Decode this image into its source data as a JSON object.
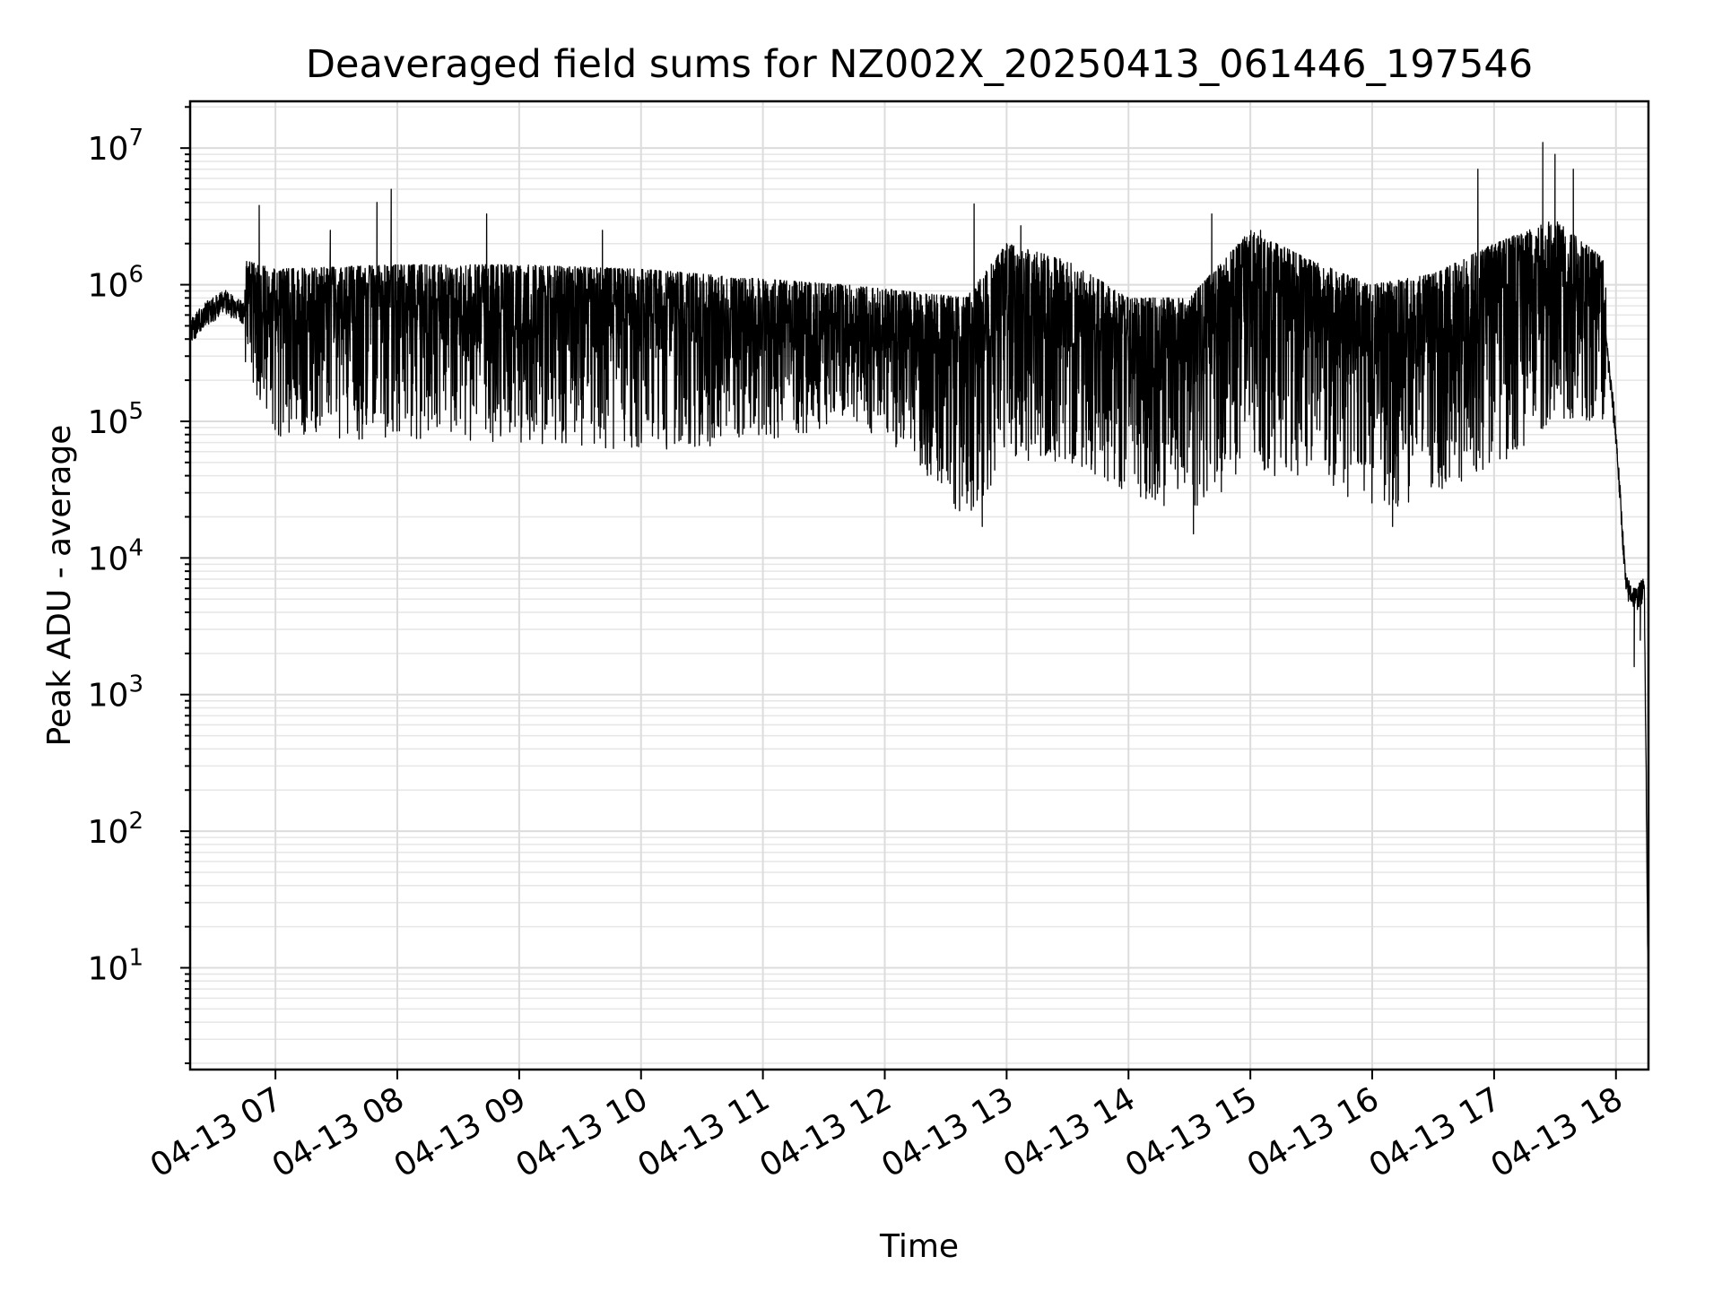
{
  "chart_data": {
    "type": "line",
    "title": "Deaveraged field sums for NZ002X_20250413_061446_197546",
    "xlabel": "Time",
    "ylabel": "Peak ADU - average",
    "x_tick_labels": [
      "04-13 07",
      "04-13 08",
      "04-13 09",
      "04-13 10",
      "04-13 11",
      "04-13 12",
      "04-13 13",
      "04-13 14",
      "04-13 15",
      "04-13 16",
      "04-13 17",
      "04-13 18"
    ],
    "y_tick_labels": [
      {
        "base": "10",
        "exp": "1"
      },
      {
        "base": "10",
        "exp": "2"
      },
      {
        "base": "10",
        "exp": "3"
      },
      {
        "base": "10",
        "exp": "4"
      },
      {
        "base": "10",
        "exp": "5"
      },
      {
        "base": "10",
        "exp": "6"
      },
      {
        "base": "10",
        "exp": "7"
      }
    ],
    "x_range": [
      "2025-04-13 06:18",
      "2025-04-13 18:16"
    ],
    "y_range": [
      1.8,
      22000000
    ],
    "y_scale": "log",
    "grid": true,
    "line_color": "#000000",
    "series": [
      {
        "x": [
          "2025-04-13 06:18",
          "2025-04-13 06:25",
          "2025-04-13 06:35",
          "2025-04-13 06:42",
          "2025-04-13 06:50",
          "2025-04-13 07:00",
          "2025-04-13 07:15",
          "2025-04-13 07:30",
          "2025-04-13 07:45",
          "2025-04-13 08:00",
          "2025-04-13 08:30",
          "2025-04-13 09:00",
          "2025-04-13 09:30",
          "2025-04-13 10:00",
          "2025-04-13 10:30",
          "2025-04-13 11:00",
          "2025-04-13 11:30",
          "2025-04-13 12:00",
          "2025-04-13 12:30",
          "2025-04-13 13:00",
          "2025-04-13 13:30",
          "2025-04-13 14:00",
          "2025-04-13 14:30",
          "2025-04-13 15:00",
          "2025-04-13 15:30",
          "2025-04-13 16:00",
          "2025-04-13 16:30",
          "2025-04-13 17:00",
          "2025-04-13 17:30",
          "2025-04-13 17:55",
          "2025-04-13 18:00",
          "2025-04-13 18:05",
          "2025-04-13 18:10",
          "2025-04-13 18:14",
          "2025-04-13 18:16"
        ],
        "y": [
          450000,
          600000,
          750000,
          650000,
          600000,
          500000,
          500000,
          550000,
          600000,
          550000,
          500000,
          550000,
          500000,
          450000,
          400000,
          380000,
          350000,
          330000,
          200000,
          350000,
          300000,
          200000,
          150000,
          450000,
          350000,
          200000,
          250000,
          380000,
          600000,
          400000,
          80000,
          6000,
          5000,
          6000,
          4
        ]
      }
    ],
    "range_low_envelope": [
      {
        "x": "2025-04-13 06:45",
        "y": 250000
      },
      {
        "x": "2025-04-13 07:00",
        "y": 70000
      },
      {
        "x": "2025-04-13 08:00",
        "y": 75000
      },
      {
        "x": "2025-04-13 09:00",
        "y": 70000
      },
      {
        "x": "2025-04-13 10:00",
        "y": 60000
      },
      {
        "x": "2025-04-13 11:00",
        "y": 65000
      },
      {
        "x": "2025-04-13 11:40",
        "y": 100000
      },
      {
        "x": "2025-04-13 12:10",
        "y": 60000
      },
      {
        "x": "2025-04-13 12:40",
        "y": 18000
      },
      {
        "x": "2025-04-13 13:00",
        "y": 50000
      },
      {
        "x": "2025-04-13 13:30",
        "y": 50000
      },
      {
        "x": "2025-04-13 14:00",
        "y": 30000
      },
      {
        "x": "2025-04-13 14:30",
        "y": 20000
      },
      {
        "x": "2025-04-13 15:00",
        "y": 40000
      },
      {
        "x": "2025-04-13 15:30",
        "y": 40000
      },
      {
        "x": "2025-04-13 16:00",
        "y": 20000
      },
      {
        "x": "2025-04-13 16:30",
        "y": 30000
      },
      {
        "x": "2025-04-13 17:00",
        "y": 45000
      },
      {
        "x": "2025-04-13 17:30",
        "y": 100000
      },
      {
        "x": "2025-04-13 17:55",
        "y": 100000
      }
    ],
    "range_high_envelope": [
      {
        "x": "2025-04-13 06:45",
        "y": 1500000
      },
      {
        "x": "2025-04-13 07:00",
        "y": 1300000
      },
      {
        "x": "2025-04-13 08:00",
        "y": 1400000
      },
      {
        "x": "2025-04-13 09:00",
        "y": 1400000
      },
      {
        "x": "2025-04-13 10:00",
        "y": 1300000
      },
      {
        "x": "2025-04-13 11:00",
        "y": 1100000
      },
      {
        "x": "2025-04-13 11:40",
        "y": 1000000
      },
      {
        "x": "2025-04-13 12:10",
        "y": 900000
      },
      {
        "x": "2025-04-13 12:40",
        "y": 800000
      },
      {
        "x": "2025-04-13 13:00",
        "y": 2000000
      },
      {
        "x": "2025-04-13 13:30",
        "y": 1500000
      },
      {
        "x": "2025-04-13 14:00",
        "y": 800000
      },
      {
        "x": "2025-04-13 14:30",
        "y": 800000
      },
      {
        "x": "2025-04-13 15:00",
        "y": 2500000
      },
      {
        "x": "2025-04-13 15:30",
        "y": 1500000
      },
      {
        "x": "2025-04-13 16:00",
        "y": 1000000
      },
      {
        "x": "2025-04-13 16:30",
        "y": 1200000
      },
      {
        "x": "2025-04-13 17:00",
        "y": 2000000
      },
      {
        "x": "2025-04-13 17:30",
        "y": 3000000
      },
      {
        "x": "2025-04-13 17:55",
        "y": 1500000
      }
    ],
    "spikes": [
      {
        "x": "2025-04-13 06:52",
        "y": 3800000
      },
      {
        "x": "2025-04-13 07:27",
        "y": 2500000
      },
      {
        "x": "2025-04-13 07:50",
        "y": 4000000
      },
      {
        "x": "2025-04-13 07:57",
        "y": 5000000
      },
      {
        "x": "2025-04-13 08:44",
        "y": 3300000
      },
      {
        "x": "2025-04-13 09:41",
        "y": 2500000
      },
      {
        "x": "2025-04-13 12:44",
        "y": 3900000
      },
      {
        "x": "2025-04-13 12:48",
        "y": 17000
      },
      {
        "x": "2025-04-13 13:07",
        "y": 2700000
      },
      {
        "x": "2025-04-13 14:32",
        "y": 15000
      },
      {
        "x": "2025-04-13 14:41",
        "y": 3300000
      },
      {
        "x": "2025-04-13 15:05",
        "y": 2500000
      },
      {
        "x": "2025-04-13 16:10",
        "y": 17000
      },
      {
        "x": "2025-04-13 16:52",
        "y": 7000000
      },
      {
        "x": "2025-04-13 17:24",
        "y": 11000000
      },
      {
        "x": "2025-04-13 17:30",
        "y": 9000000
      },
      {
        "x": "2025-04-13 17:39",
        "y": 7000000
      },
      {
        "x": "2025-04-13 18:09",
        "y": 1600
      },
      {
        "x": "2025-04-13 18:12",
        "y": 2500
      }
    ]
  }
}
